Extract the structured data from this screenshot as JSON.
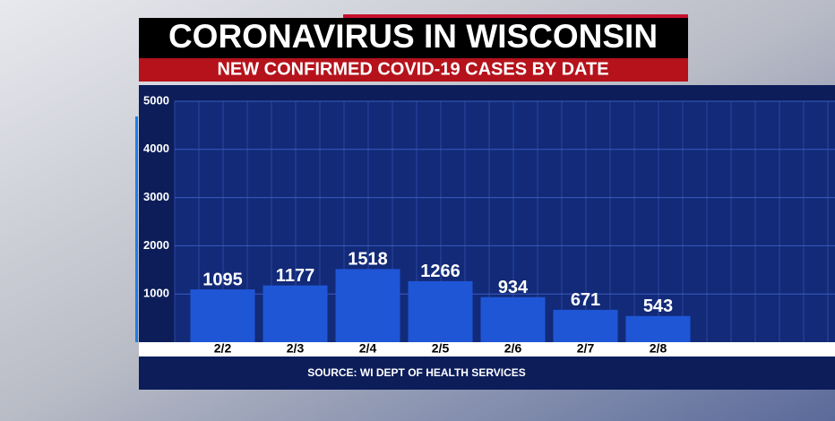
{
  "chart_data": {
    "type": "bar",
    "title": "CORONAVIRUS IN WISCONSIN",
    "subtitle": "NEW CONFIRMED COVID-19 CASES BY DATE",
    "source": "SOURCE: WI DEPT OF HEALTH SERVICES",
    "categories": [
      "2/2",
      "2/3",
      "2/4",
      "2/5",
      "2/6",
      "2/7",
      "2/8"
    ],
    "values": [
      1095,
      1177,
      1518,
      1266,
      934,
      671,
      543
    ],
    "color": "#1f56d6",
    "ylim": [
      0,
      5000
    ],
    "yticks": [
      1000,
      2000,
      3000,
      4000,
      5000
    ],
    "grid": true
  }
}
